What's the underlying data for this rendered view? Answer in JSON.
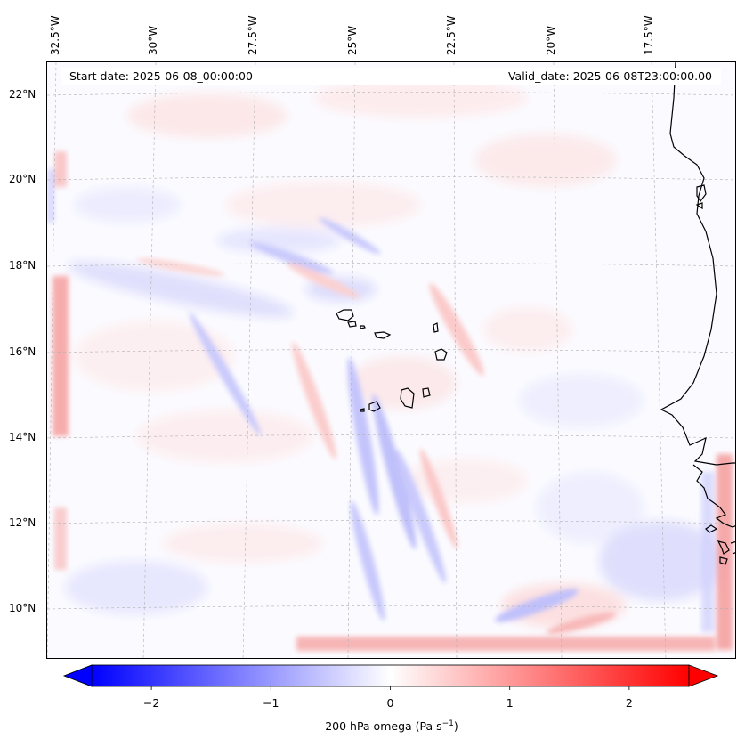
{
  "map": {
    "info": {
      "start_date": "Start date: 2025-06-08_00:00:00",
      "valid_date": "Valid_date: 2025-06-08T23:00:00.00"
    },
    "longitude_labels": [
      "32.5°W",
      "30°W",
      "27.5°W",
      "25°W",
      "22.5°W",
      "20°W",
      "17.5°W"
    ],
    "latitude_labels": [
      "22°N",
      "20°N",
      "18°N",
      "16°N",
      "14°N",
      "12°N",
      "10°N"
    ],
    "extent": {
      "lon_min": -33.0,
      "lon_max": -15.4,
      "lat_min": 8.9,
      "lat_max": 22.8
    },
    "field": "200 hPa vertical velocity (omega)",
    "gridlines": true,
    "colors": {
      "negative_max": "#0000ff",
      "zero": "#ffffff",
      "positive_max": "#ff0000",
      "coastline": "#000000",
      "gridline": "#b0b0b0"
    }
  },
  "colorbar": {
    "ticks": [
      {
        "value": -2,
        "label": "−2"
      },
      {
        "value": -1,
        "label": "−1"
      },
      {
        "value": 0,
        "label": "0"
      },
      {
        "value": 1,
        "label": "1"
      },
      {
        "value": 2,
        "label": "2"
      }
    ],
    "min": -2.5,
    "max": 2.5,
    "extend": "both",
    "title_main": "200 hPa omega (Pa s",
    "title_exponent": "−1",
    "title_close": ")"
  }
}
